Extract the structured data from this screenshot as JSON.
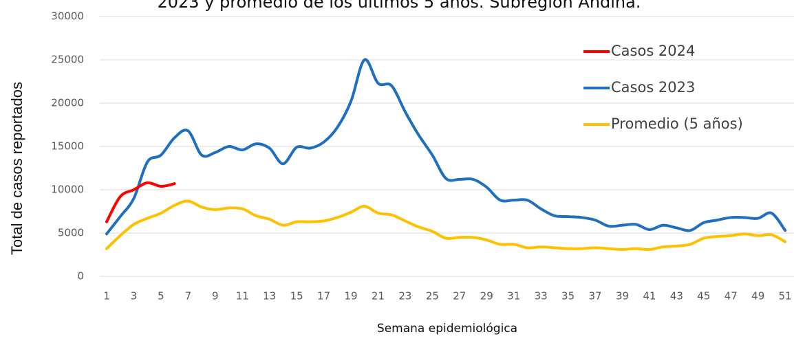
{
  "chart_data": {
    "type": "line",
    "title": "2023 y promedio de los últimos 5 años. Subregión Andina.",
    "x_label": "Semana epidemiológica",
    "y_label": "Total de casos reportados",
    "x": [
      1,
      2,
      3,
      4,
      5,
      6,
      7,
      8,
      9,
      10,
      11,
      12,
      13,
      14,
      15,
      16,
      17,
      18,
      19,
      20,
      21,
      22,
      23,
      24,
      25,
      26,
      27,
      28,
      29,
      30,
      31,
      32,
      33,
      34,
      35,
      36,
      37,
      38,
      39,
      40,
      41,
      42,
      43,
      44,
      45,
      46,
      47,
      48,
      49,
      50,
      51
    ],
    "series": [
      {
        "name": "Casos 2024",
        "color": "#ff0000",
        "values": [
          6300,
          9200,
          10000,
          10800,
          10400,
          10700,
          null,
          null,
          null,
          null,
          null,
          null,
          null,
          null,
          null,
          null,
          null,
          null,
          null,
          null,
          null,
          null,
          null,
          null,
          null,
          null,
          null,
          null,
          null,
          null,
          null,
          null,
          null,
          null,
          null,
          null,
          null,
          null,
          null,
          null,
          null,
          null,
          null,
          null,
          null,
          null,
          null,
          null,
          null,
          null,
          null
        ]
      },
      {
        "name": "Casos 2023",
        "color": "#1f6fc0",
        "values": [
          4900,
          6900,
          9000,
          13200,
          14000,
          16000,
          16800,
          14000,
          14300,
          15000,
          14600,
          15300,
          14800,
          13000,
          14900,
          14800,
          15500,
          17200,
          20200,
          25000,
          22300,
          22000,
          19000,
          16300,
          14000,
          11300,
          11200,
          11200,
          10300,
          8800,
          8800,
          8800,
          7800,
          7000,
          6900,
          6800,
          6500,
          5800,
          5900,
          6000,
          5400,
          5900,
          5600,
          5300,
          6200,
          6500,
          6800,
          6800,
          6700,
          7300,
          5300
        ]
      },
      {
        "name": "Promedio (5 años)",
        "color": "#ffc000",
        "values": [
          3200,
          4700,
          6000,
          6700,
          7300,
          8200,
          8700,
          8000,
          7700,
          7900,
          7800,
          7000,
          6600,
          5900,
          6300,
          6300,
          6400,
          6800,
          7400,
          8100,
          7300,
          7100,
          6400,
          5700,
          5200,
          4400,
          4500,
          4500,
          4200,
          3700,
          3700,
          3300,
          3400,
          3300,
          3200,
          3200,
          3300,
          3200,
          3100,
          3200,
          3100,
          3400,
          3500,
          3700,
          4400,
          4600,
          4700,
          4900,
          4700,
          4800,
          4000
        ]
      }
    ],
    "xlim": [
      1,
      51.6
    ],
    "xticks": [
      1,
      3,
      5,
      7,
      9,
      11,
      13,
      15,
      17,
      19,
      21,
      23,
      25,
      27,
      29,
      31,
      33,
      35,
      37,
      39,
      41,
      43,
      45,
      47,
      49,
      51
    ],
    "ylim": [
      0,
      30000
    ],
    "yticks": [
      0,
      5000,
      10000,
      15000,
      20000,
      25000,
      30000
    ],
    "grid": true,
    "legend": "upper right"
  }
}
